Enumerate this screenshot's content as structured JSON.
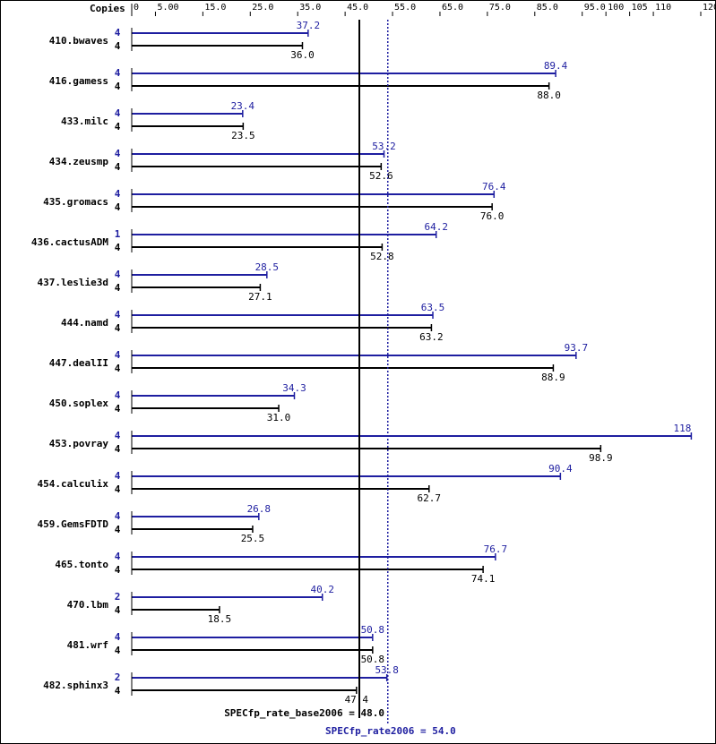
{
  "chart_data": {
    "type": "bar",
    "orientation": "horizontal",
    "header": "Copies",
    "x_ticks": [
      "0",
      "5.00",
      "15.0",
      "25.0",
      "35.0",
      "45.0",
      "55.0",
      "65.0",
      "75.0",
      "85.0",
      "95.0",
      "100",
      "105",
      "110",
      "120"
    ],
    "xlim": [
      0,
      120
    ],
    "categories": [
      "410.bwaves",
      "416.gamess",
      "433.milc",
      "434.zeusmp",
      "435.gromacs",
      "436.cactusADM",
      "437.leslie3d",
      "444.namd",
      "447.dealII",
      "450.soplex",
      "453.povray",
      "454.calculix",
      "459.GemsFDTD",
      "465.tonto",
      "470.lbm",
      "481.wrf",
      "482.sphinx3"
    ],
    "series": [
      {
        "name": "peak",
        "color": "#1e1ea0",
        "copies": [
          "4",
          "4",
          "4",
          "4",
          "4",
          "1",
          "4",
          "4",
          "4",
          "4",
          "4",
          "4",
          "4",
          "4",
          "2",
          "4",
          "2"
        ],
        "values": [
          37.2,
          89.4,
          23.4,
          53.2,
          76.4,
          64.2,
          28.5,
          63.5,
          93.7,
          34.3,
          118,
          90.4,
          26.8,
          76.7,
          40.2,
          50.8,
          53.8
        ],
        "labels": [
          "37.2",
          "89.4",
          "23.4",
          "53.2",
          "76.4",
          "64.2",
          "28.5",
          "63.5",
          "93.7",
          "34.3",
          "118",
          "90.4",
          "26.8",
          "76.7",
          "40.2",
          "50.8",
          "53.8"
        ]
      },
      {
        "name": "base",
        "color": "#000000",
        "copies": [
          "4",
          "4",
          "4",
          "4",
          "4",
          "4",
          "4",
          "4",
          "4",
          "4",
          "4",
          "4",
          "4",
          "4",
          "4",
          "4",
          "4"
        ],
        "values": [
          36.0,
          88.0,
          23.5,
          52.6,
          76.0,
          52.8,
          27.1,
          63.2,
          88.9,
          31.0,
          98.9,
          62.7,
          25.5,
          74.1,
          18.5,
          50.8,
          47.4
        ],
        "labels": [
          "36.0",
          "88.0",
          "23.5",
          "52.6",
          "76.0",
          "52.8",
          "27.1",
          "63.2",
          "88.9",
          "31.0",
          "98.9",
          "62.7",
          "25.5",
          "74.1",
          "18.5",
          "50.8",
          "47.4"
        ]
      }
    ],
    "reference_lines": [
      {
        "name": "base",
        "value": 48.0,
        "label": "SPECfp_rate_base2006 = 48.0",
        "style": "solid",
        "color": "#000000"
      },
      {
        "name": "peak",
        "value": 54.0,
        "label": "SPECfp_rate2006 = 54.0",
        "style": "dotted",
        "color": "#1e1ea0"
      }
    ]
  }
}
